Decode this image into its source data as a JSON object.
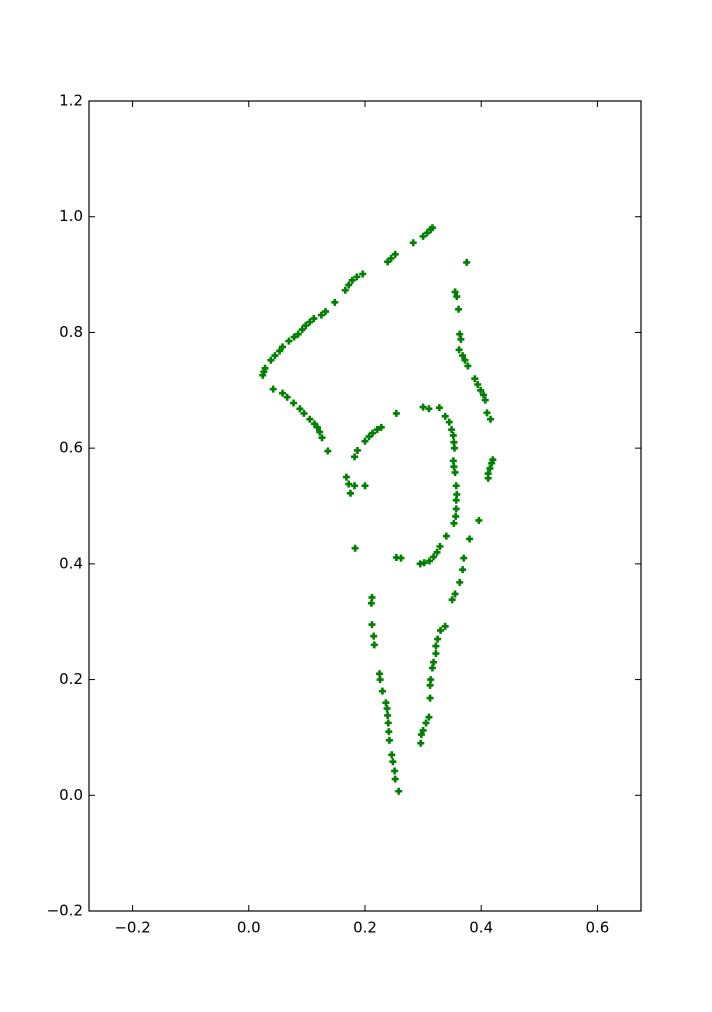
{
  "chart_data": {
    "type": "scatter",
    "title": "",
    "xlabel": "",
    "ylabel": "",
    "xlim": [
      -0.275,
      0.675
    ],
    "ylim": [
      -0.2,
      1.2
    ],
    "grid": false,
    "xticks": [
      -0.2,
      0.0,
      0.2,
      0.4,
      0.6
    ],
    "xtick_labels": [
      "−0.2",
      "0.0",
      "0.2",
      "0.4",
      "0.6"
    ],
    "yticks": [
      -0.2,
      0.0,
      0.2,
      0.4,
      0.6,
      0.8,
      1.0,
      1.2
    ],
    "ytick_labels": [
      "−0.2",
      "0.0",
      "0.2",
      "0.4",
      "0.6",
      "0.8",
      "1.0",
      "1.2"
    ],
    "marker": "+",
    "series": [
      {
        "color": "#007f00",
        "points": [
          [
            0.024,
            0.726
          ],
          [
            0.026,
            0.732
          ],
          [
            0.028,
            0.738
          ],
          [
            0.038,
            0.752
          ],
          [
            0.045,
            0.76
          ],
          [
            0.053,
            0.768
          ],
          [
            0.058,
            0.775
          ],
          [
            0.069,
            0.785
          ],
          [
            0.078,
            0.792
          ],
          [
            0.085,
            0.797
          ],
          [
            0.092,
            0.805
          ],
          [
            0.098,
            0.812
          ],
          [
            0.105,
            0.818
          ],
          [
            0.112,
            0.824
          ],
          [
            0.125,
            0.83
          ],
          [
            0.132,
            0.836
          ],
          [
            0.148,
            0.852
          ],
          [
            0.166,
            0.873
          ],
          [
            0.172,
            0.882
          ],
          [
            0.178,
            0.89
          ],
          [
            0.186,
            0.896
          ],
          [
            0.196,
            0.901
          ],
          [
            0.239,
            0.922
          ],
          [
            0.245,
            0.928
          ],
          [
            0.252,
            0.935
          ],
          [
            0.283,
            0.955
          ],
          [
            0.3,
            0.966
          ],
          [
            0.307,
            0.972
          ],
          [
            0.313,
            0.978
          ],
          [
            0.316,
            0.981
          ],
          [
            0.042,
            0.702
          ],
          [
            0.058,
            0.695
          ],
          [
            0.066,
            0.688
          ],
          [
            0.077,
            0.678
          ],
          [
            0.088,
            0.668
          ],
          [
            0.095,
            0.66
          ],
          [
            0.105,
            0.65
          ],
          [
            0.113,
            0.642
          ],
          [
            0.118,
            0.636
          ],
          [
            0.122,
            0.628
          ],
          [
            0.126,
            0.618
          ],
          [
            0.136,
            0.595
          ],
          [
            0.168,
            0.55
          ],
          [
            0.172,
            0.538
          ],
          [
            0.175,
            0.522
          ],
          [
            0.182,
            0.535
          ],
          [
            0.2,
            0.535
          ],
          [
            0.183,
            0.427
          ],
          [
            0.182,
            0.585
          ],
          [
            0.187,
            0.596
          ],
          [
            0.2,
            0.612
          ],
          [
            0.207,
            0.62
          ],
          [
            0.213,
            0.626
          ],
          [
            0.221,
            0.632
          ],
          [
            0.228,
            0.636
          ],
          [
            0.254,
            0.66
          ],
          [
            0.3,
            0.671
          ],
          [
            0.31,
            0.668
          ],
          [
            0.328,
            0.67
          ],
          [
            0.338,
            0.655
          ],
          [
            0.345,
            0.645
          ],
          [
            0.349,
            0.632
          ],
          [
            0.352,
            0.622
          ],
          [
            0.353,
            0.61
          ],
          [
            0.354,
            0.6
          ],
          [
            0.352,
            0.578
          ],
          [
            0.353,
            0.568
          ],
          [
            0.355,
            0.558
          ],
          [
            0.357,
            0.535
          ],
          [
            0.358,
            0.52
          ],
          [
            0.357,
            0.51
          ],
          [
            0.357,
            0.495
          ],
          [
            0.356,
            0.482
          ],
          [
            0.353,
            0.47
          ],
          [
            0.34,
            0.448
          ],
          [
            0.329,
            0.43
          ],
          [
            0.324,
            0.42
          ],
          [
            0.318,
            0.412
          ],
          [
            0.311,
            0.405
          ],
          [
            0.302,
            0.402
          ],
          [
            0.295,
            0.4
          ],
          [
            0.262,
            0.41
          ],
          [
            0.254,
            0.411
          ],
          [
            0.355,
            0.87
          ],
          [
            0.358,
            0.862
          ],
          [
            0.361,
            0.84
          ],
          [
            0.363,
            0.797
          ],
          [
            0.365,
            0.788
          ],
          [
            0.362,
            0.77
          ],
          [
            0.368,
            0.76
          ],
          [
            0.372,
            0.752
          ],
          [
            0.377,
            0.742
          ],
          [
            0.389,
            0.72
          ],
          [
            0.394,
            0.71
          ],
          [
            0.399,
            0.7
          ],
          [
            0.404,
            0.692
          ],
          [
            0.407,
            0.683
          ],
          [
            0.41,
            0.661
          ],
          [
            0.416,
            0.65
          ],
          [
            0.375,
            0.921
          ],
          [
            0.412,
            0.548
          ],
          [
            0.412,
            0.556
          ],
          [
            0.415,
            0.565
          ],
          [
            0.418,
            0.574
          ],
          [
            0.42,
            0.58
          ],
          [
            0.396,
            0.475
          ],
          [
            0.38,
            0.443
          ],
          [
            0.37,
            0.41
          ],
          [
            0.368,
            0.39
          ],
          [
            0.363,
            0.368
          ],
          [
            0.355,
            0.348
          ],
          [
            0.35,
            0.338
          ],
          [
            0.338,
            0.292
          ],
          [
            0.33,
            0.285
          ],
          [
            0.325,
            0.27
          ],
          [
            0.322,
            0.258
          ],
          [
            0.322,
            0.245
          ],
          [
            0.318,
            0.23
          ],
          [
            0.316,
            0.22
          ],
          [
            0.313,
            0.2
          ],
          [
            0.312,
            0.19
          ],
          [
            0.312,
            0.168
          ],
          [
            0.31,
            0.135
          ],
          [
            0.305,
            0.125
          ],
          [
            0.3,
            0.112
          ],
          [
            0.297,
            0.105
          ],
          [
            0.296,
            0.09
          ],
          [
            0.212,
            0.342
          ],
          [
            0.211,
            0.332
          ],
          [
            0.212,
            0.295
          ],
          [
            0.215,
            0.275
          ],
          [
            0.216,
            0.26
          ],
          [
            0.225,
            0.21
          ],
          [
            0.226,
            0.2
          ],
          [
            0.23,
            0.18
          ],
          [
            0.236,
            0.16
          ],
          [
            0.238,
            0.15
          ],
          [
            0.239,
            0.138
          ],
          [
            0.24,
            0.125
          ],
          [
            0.241,
            0.11
          ],
          [
            0.242,
            0.095
          ],
          [
            0.246,
            0.07
          ],
          [
            0.248,
            0.058
          ],
          [
            0.251,
            0.042
          ],
          [
            0.252,
            0.028
          ],
          [
            0.258,
            0.007
          ]
        ]
      }
    ]
  }
}
